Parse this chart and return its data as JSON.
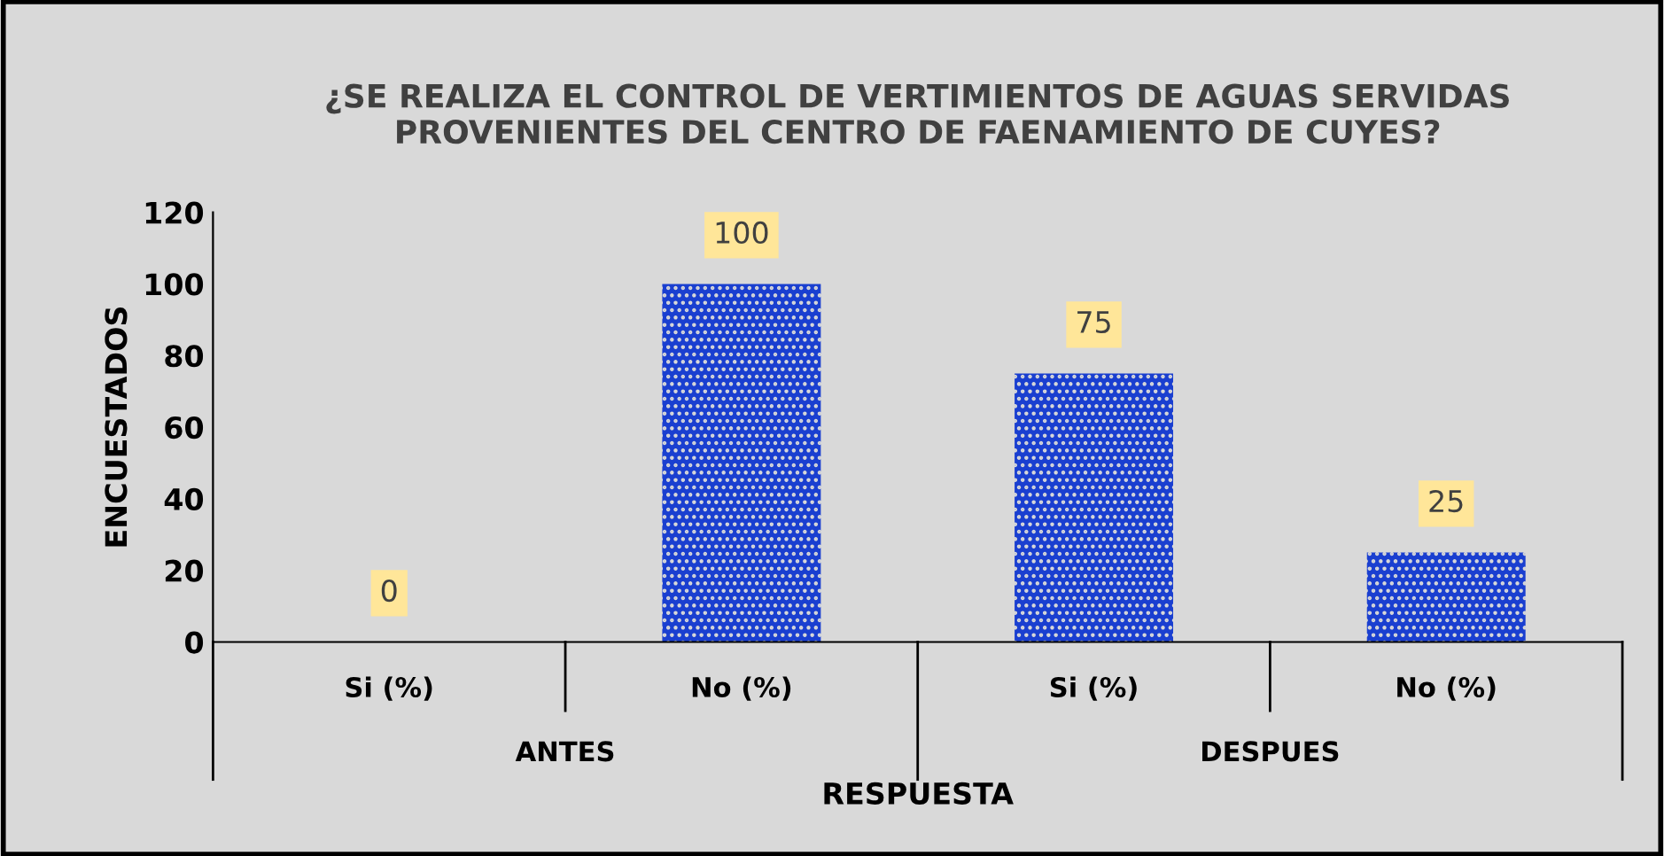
{
  "chart_data": {
    "type": "bar",
    "title": "¿SE REALIZA EL CONTROL DE VERTIMIENTOS DE AGUAS SERVIDAS\nPROVENIENTES DEL CENTRO DE FAENAMIENTO DE CUYES?",
    "xlabel": "RESPUESTA",
    "ylabel": "ENCUESTADOS",
    "categories": [
      "Si (%)",
      "No (%)",
      "Si (%)",
      "No (%)"
    ],
    "annotations": [
      "ANTES",
      "DESPUES"
    ],
    "values": [
      0,
      100,
      75,
      25
    ],
    "color": "#1a3fd0",
    "ylim": [
      0,
      120
    ],
    "yticks": [
      0,
      20,
      40,
      60,
      80,
      100,
      120
    ],
    "grid": false,
    "data_labels": true
  }
}
